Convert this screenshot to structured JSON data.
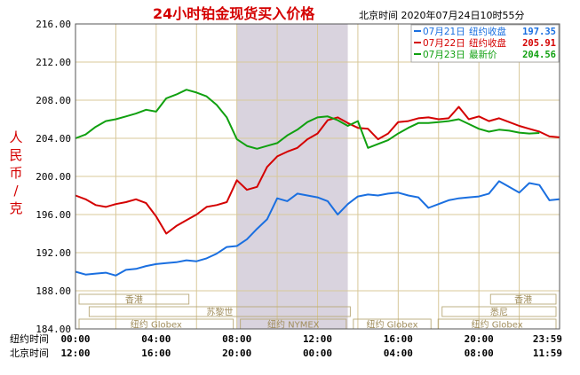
{
  "chart_data": {
    "type": "line",
    "title": "24小时铂金现货买入价格",
    "subtitle": "北京时间   2020年07月24日10时55分",
    "ylabel": "人民币/克",
    "ylim": [
      184,
      216
    ],
    "y_ticks": [
      "216.00",
      "212.00",
      "208.00",
      "204.00",
      "200.00",
      "196.00",
      "192.00",
      "188.00",
      "184.00"
    ],
    "grid": true,
    "legend_position": "top-right",
    "x_rows": [
      {
        "label": "纽约时间",
        "ticks": [
          "00:00",
          "04:00",
          "08:00",
          "12:00",
          "16:00",
          "20:00",
          "23:59"
        ]
      },
      {
        "label": "北京时间",
        "ticks": [
          "12:00",
          "16:00",
          "20:00",
          "00:00",
          "04:00",
          "08:00",
          "11:59"
        ]
      }
    ],
    "x_range_hours": [
      0,
      24
    ],
    "highlight_hours": [
      8,
      13.5
    ],
    "sessions": [
      {
        "label": "香港",
        "start": 0,
        "end": 5.8
      },
      {
        "label": "苏黎世",
        "start": 0.5,
        "end": 13.8
      },
      {
        "label": "纽约 Globex",
        "start": 0,
        "end": 8.0
      },
      {
        "label": "纽约 NYMEX",
        "start": 8.0,
        "end": 13.6
      },
      {
        "label": "纽约 Globex",
        "start": 13.6,
        "end": 17.8
      },
      {
        "label": "香港",
        "start": 20.4,
        "end": 24
      },
      {
        "label": "悉尼",
        "start": 18.0,
        "end": 24
      },
      {
        "label": "纽约 Globex",
        "start": 17.8,
        "end": 24
      }
    ],
    "series": [
      {
        "name": "07月21日",
        "legend_text": "纽约收盘",
        "close": "197.35",
        "color": "#1a6fe0",
        "x": [
          0,
          0.5,
          1,
          1.5,
          2,
          2.5,
          3,
          3.5,
          4,
          4.5,
          5,
          5.5,
          6,
          6.5,
          7,
          7.5,
          8,
          8.5,
          9,
          9.5,
          10,
          10.5,
          11,
          11.5,
          12,
          12.5,
          13,
          13.5,
          14,
          14.5,
          15,
          15.5,
          16,
          16.5,
          17,
          17.5,
          18,
          18.5,
          19,
          19.5,
          20,
          20.5,
          21,
          21.5,
          22,
          22.5,
          23,
          23.5,
          23.98
        ],
        "y": [
          190.0,
          189.7,
          189.8,
          189.9,
          189.6,
          190.2,
          190.3,
          190.6,
          190.8,
          190.9,
          191.0,
          191.2,
          191.1,
          191.4,
          191.9,
          192.6,
          192.7,
          193.4,
          194.5,
          195.5,
          197.7,
          197.4,
          198.2,
          198.0,
          197.8,
          197.4,
          196.0,
          197.1,
          197.9,
          198.1,
          198.0,
          198.2,
          198.3,
          198.0,
          197.8,
          196.7,
          197.1,
          197.5,
          197.7,
          197.8,
          197.9,
          198.2,
          199.5,
          198.9,
          198.3,
          199.3,
          199.1,
          197.5,
          197.6
        ]
      },
      {
        "name": "07月22日",
        "legend_text": "纽约收盘",
        "close": "205.91",
        "color": "#d40000",
        "x": [
          0,
          0.5,
          1,
          1.5,
          2,
          2.5,
          3,
          3.5,
          4,
          4.5,
          5,
          5.5,
          6,
          6.5,
          7,
          7.5,
          8,
          8.5,
          9,
          9.5,
          10,
          10.5,
          11,
          11.5,
          12,
          12.5,
          13,
          13.5,
          14,
          14.5,
          15,
          15.5,
          16,
          16.5,
          17,
          17.5,
          18,
          18.5,
          19,
          19.5,
          20,
          20.5,
          21,
          21.5,
          22,
          22.5,
          23,
          23.5,
          23.98
        ],
        "y": [
          198.0,
          197.6,
          197.0,
          196.8,
          197.1,
          197.3,
          197.6,
          197.2,
          195.8,
          194.0,
          194.8,
          195.4,
          196.0,
          196.8,
          197.0,
          197.3,
          199.6,
          198.6,
          198.9,
          201.0,
          202.1,
          202.6,
          203.0,
          203.9,
          204.5,
          205.9,
          206.2,
          205.6,
          205.1,
          205.0,
          203.9,
          204.5,
          205.7,
          205.8,
          206.1,
          206.2,
          206.0,
          206.1,
          207.3,
          206.0,
          206.3,
          205.8,
          206.1,
          205.7,
          205.3,
          205.0,
          204.7,
          204.2,
          204.1
        ]
      },
      {
        "name": "07月23日",
        "legend_text": "最新价",
        "close": "204.56",
        "color": "#10a010",
        "x": [
          0,
          0.5,
          1,
          1.5,
          2,
          2.5,
          3,
          3.5,
          4,
          4.5,
          5,
          5.5,
          6,
          6.5,
          7,
          7.5,
          8,
          8.5,
          9,
          9.5,
          10,
          10.5,
          11,
          11.5,
          12,
          12.5,
          13,
          13.5,
          14,
          14.5,
          15,
          15.5,
          16,
          16.5,
          17,
          17.5,
          18,
          18.5,
          19,
          19.5,
          20,
          20.5,
          21,
          21.5,
          22,
          22.5,
          23
        ],
        "y": [
          204.0,
          204.4,
          205.2,
          205.8,
          206.0,
          206.3,
          206.6,
          207.0,
          206.8,
          208.2,
          208.6,
          209.1,
          208.8,
          208.4,
          207.5,
          206.2,
          203.9,
          203.2,
          202.9,
          203.2,
          203.5,
          204.3,
          204.9,
          205.7,
          206.2,
          206.3,
          205.9,
          205.3,
          205.8,
          203.0,
          203.4,
          203.8,
          204.5,
          205.1,
          205.6,
          205.6,
          205.7,
          205.8,
          206.0,
          205.5,
          205.0,
          204.7,
          204.9,
          204.8,
          204.6,
          204.5,
          204.56
        ]
      }
    ]
  }
}
